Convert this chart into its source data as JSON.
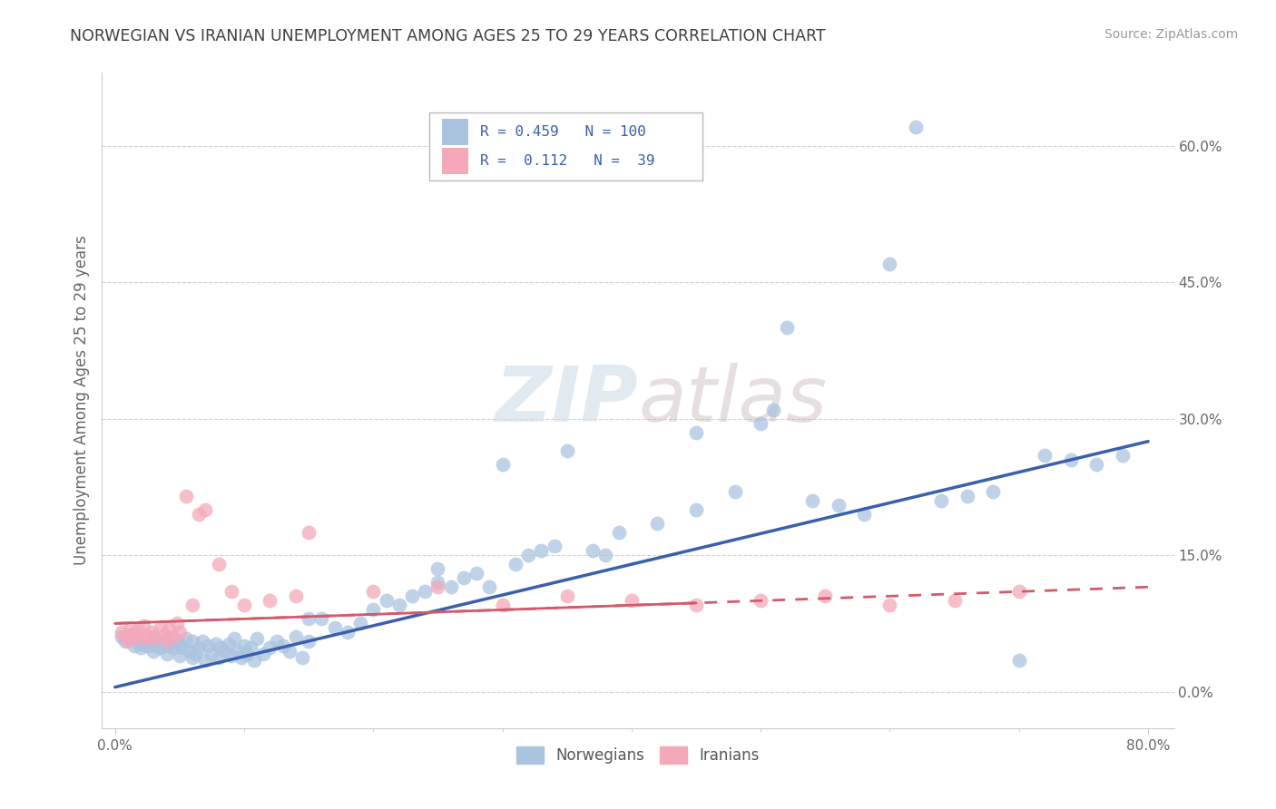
{
  "title": "NORWEGIAN VS IRANIAN UNEMPLOYMENT AMONG AGES 25 TO 29 YEARS CORRELATION CHART",
  "source": "Source: ZipAtlas.com",
  "ylabel": "Unemployment Among Ages 25 to 29 years",
  "xlim": [
    -0.01,
    0.82
  ],
  "ylim": [
    -0.04,
    0.68
  ],
  "yticks": [
    0.0,
    0.15,
    0.3,
    0.45,
    0.6
  ],
  "ytick_labels": [
    "0.0%",
    "15.0%",
    "30.0%",
    "45.0%",
    "60.0%"
  ],
  "xtick_labels": [
    "0.0%",
    "80.0%"
  ],
  "norwegian_R": 0.459,
  "norwegian_N": 100,
  "iranian_R": 0.112,
  "iranian_N": 39,
  "norwegian_color": "#aac4df",
  "iranian_color": "#f4a8ba",
  "norwegian_line_color": "#3a5fad",
  "iranian_line_color": "#d45a6a",
  "title_color": "#404040",
  "legend_text_color": "#3a5fad",
  "nor_line_start_y": 0.005,
  "nor_line_end_y": 0.275,
  "ira_line_start_y": 0.075,
  "ira_line_end_y": 0.115,
  "norwegian_x": [
    0.005,
    0.008,
    0.01,
    0.012,
    0.015,
    0.018,
    0.02,
    0.022,
    0.025,
    0.028,
    0.03,
    0.03,
    0.032,
    0.035,
    0.038,
    0.04,
    0.04,
    0.042,
    0.045,
    0.048,
    0.05,
    0.05,
    0.052,
    0.055,
    0.058,
    0.06,
    0.06,
    0.062,
    0.065,
    0.068,
    0.07,
    0.072,
    0.075,
    0.078,
    0.08,
    0.082,
    0.085,
    0.088,
    0.09,
    0.092,
    0.095,
    0.098,
    0.1,
    0.102,
    0.105,
    0.108,
    0.11,
    0.115,
    0.12,
    0.125,
    0.13,
    0.135,
    0.14,
    0.145,
    0.15,
    0.16,
    0.17,
    0.18,
    0.19,
    0.2,
    0.21,
    0.22,
    0.23,
    0.24,
    0.25,
    0.26,
    0.27,
    0.28,
    0.29,
    0.3,
    0.31,
    0.32,
    0.33,
    0.34,
    0.35,
    0.37,
    0.39,
    0.42,
    0.45,
    0.48,
    0.51,
    0.52,
    0.54,
    0.56,
    0.58,
    0.6,
    0.62,
    0.64,
    0.66,
    0.68,
    0.7,
    0.72,
    0.74,
    0.76,
    0.78,
    0.5,
    0.45,
    0.38,
    0.25,
    0.15
  ],
  "norwegian_y": [
    0.06,
    0.055,
    0.058,
    0.062,
    0.05,
    0.055,
    0.048,
    0.052,
    0.05,
    0.058,
    0.045,
    0.06,
    0.05,
    0.048,
    0.055,
    0.042,
    0.058,
    0.05,
    0.048,
    0.055,
    0.04,
    0.052,
    0.048,
    0.058,
    0.045,
    0.038,
    0.055,
    0.042,
    0.048,
    0.055,
    0.035,
    0.05,
    0.042,
    0.052,
    0.038,
    0.048,
    0.045,
    0.052,
    0.04,
    0.058,
    0.045,
    0.038,
    0.05,
    0.042,
    0.048,
    0.035,
    0.058,
    0.042,
    0.048,
    0.055,
    0.05,
    0.045,
    0.06,
    0.038,
    0.055,
    0.08,
    0.07,
    0.065,
    0.075,
    0.09,
    0.1,
    0.095,
    0.105,
    0.11,
    0.12,
    0.115,
    0.125,
    0.13,
    0.115,
    0.25,
    0.14,
    0.15,
    0.155,
    0.16,
    0.265,
    0.155,
    0.175,
    0.185,
    0.2,
    0.22,
    0.31,
    0.4,
    0.21,
    0.205,
    0.195,
    0.47,
    0.62,
    0.21,
    0.215,
    0.22,
    0.035,
    0.26,
    0.255,
    0.25,
    0.26,
    0.295,
    0.285,
    0.15,
    0.135,
    0.08
  ],
  "iranian_x": [
    0.005,
    0.008,
    0.01,
    0.012,
    0.015,
    0.018,
    0.02,
    0.022,
    0.025,
    0.028,
    0.03,
    0.035,
    0.038,
    0.04,
    0.042,
    0.045,
    0.048,
    0.05,
    0.055,
    0.06,
    0.065,
    0.07,
    0.08,
    0.09,
    0.1,
    0.12,
    0.14,
    0.15,
    0.2,
    0.25,
    0.3,
    0.35,
    0.4,
    0.45,
    0.5,
    0.55,
    0.6,
    0.65,
    0.7
  ],
  "iranian_y": [
    0.065,
    0.06,
    0.055,
    0.07,
    0.062,
    0.068,
    0.058,
    0.072,
    0.06,
    0.065,
    0.058,
    0.07,
    0.062,
    0.055,
    0.068,
    0.06,
    0.075,
    0.065,
    0.215,
    0.095,
    0.195,
    0.2,
    0.14,
    0.11,
    0.095,
    0.1,
    0.105,
    0.175,
    0.11,
    0.115,
    0.095,
    0.105,
    0.1,
    0.095,
    0.1,
    0.105,
    0.095,
    0.1,
    0.11
  ]
}
